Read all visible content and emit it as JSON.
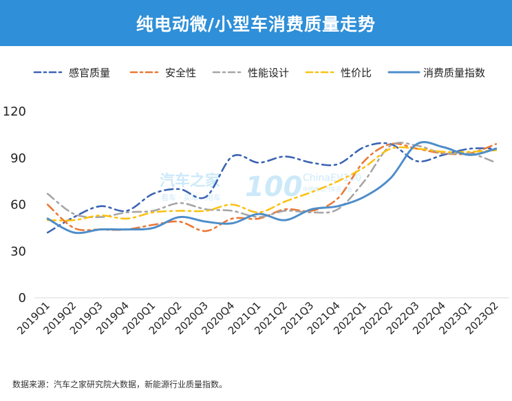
{
  "chart_data": {
    "type": "line",
    "title": "纯电动微/小型车消费质量走势",
    "categories": [
      "2019Q1",
      "2019Q2",
      "2019Q3",
      "2019Q4",
      "2020Q1",
      "2020Q2",
      "2020Q3",
      "2020Q4",
      "2021Q1",
      "2021Q2",
      "2021Q3",
      "2021Q4",
      "2022Q1",
      "2022Q2",
      "2022Q3",
      "2022Q4",
      "2023Q1",
      "2023Q2"
    ],
    "ylim": [
      0,
      120
    ],
    "yticks": [
      "0",
      "30",
      "60",
      "90",
      "120"
    ],
    "grid": false,
    "legend_position": "top",
    "series": [
      {
        "name": "感官质量",
        "color": "#3a63b4",
        "style": "dashdot",
        "values": [
          42,
          52,
          59,
          56,
          67,
          70,
          65,
          91,
          87,
          91,
          87,
          86,
          97,
          99,
          88,
          92,
          96,
          96
        ]
      },
      {
        "name": "安全性",
        "color": "#ec7734",
        "style": "dashdot",
        "values": [
          60,
          45,
          44,
          44,
          47,
          49,
          43,
          51,
          51,
          57,
          56,
          64,
          88,
          99,
          96,
          93,
          93,
          99
        ]
      },
      {
        "name": "性能设计",
        "color": "#a5a5a5",
        "style": "dashdot",
        "values": [
          67,
          54,
          52,
          55,
          56,
          61,
          57,
          56,
          52,
          56,
          55,
          57,
          75,
          98,
          98,
          93,
          93,
          87
        ]
      },
      {
        "name": "性价比",
        "color": "#fcc010",
        "style": "dashdot",
        "values": [
          50,
          50,
          53,
          51,
          55,
          56,
          56,
          60,
          55,
          62,
          68,
          75,
          84,
          96,
          96,
          94,
          94,
          95
        ]
      },
      {
        "name": "消费质量指数",
        "color": "#4d8dc9",
        "style": "solid",
        "values": [
          51,
          42,
          44,
          44,
          45,
          52,
          49,
          48,
          54,
          50,
          57,
          59,
          65,
          77,
          99,
          97,
          92,
          96
        ]
      }
    ]
  },
  "watermark": {
    "brand": "汽车之家",
    "brand_sub": "看车 · 买车 · 用车",
    "logo_digits": "100",
    "logo_en": "ChinaEV100",
    "logo_cn": "中国电动汽车百人会"
  },
  "source_note": "数据来源：汽车之家研究院大数据，新能源行业质量指数。"
}
